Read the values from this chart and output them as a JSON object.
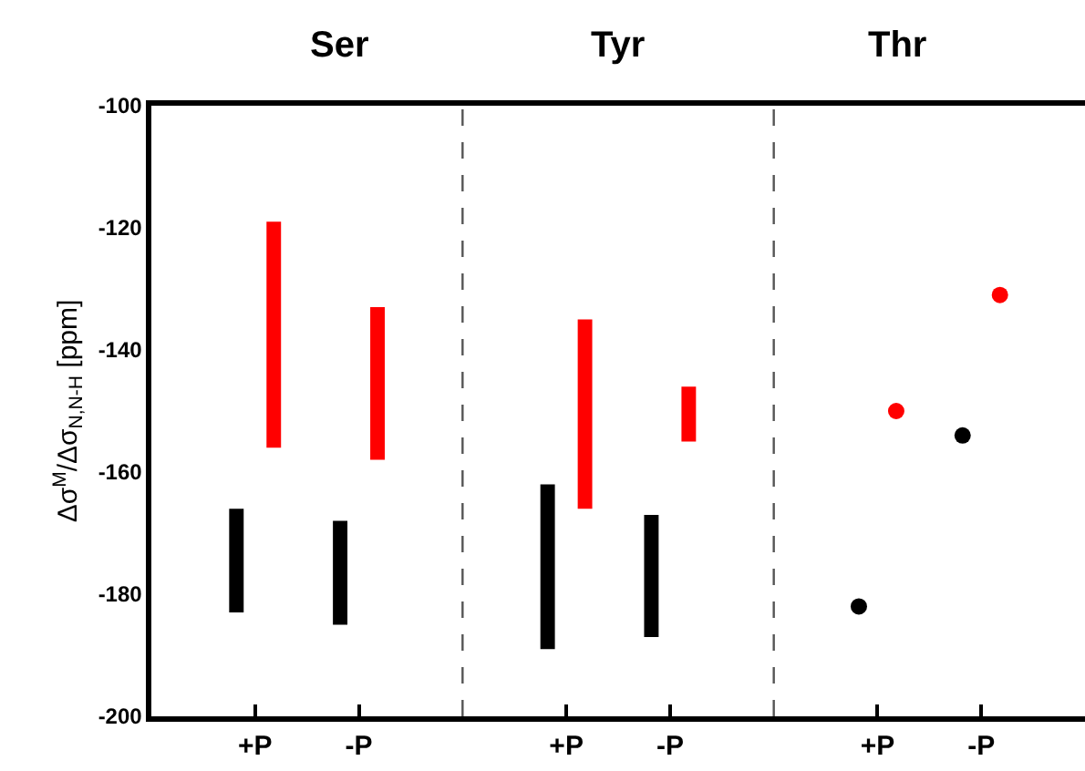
{
  "chart_data": [
    {
      "type": "bar",
      "title": "Ser",
      "ylabel": "Δσ$^{M}$/Δσ$_{N,N-H}$ [ppm]",
      "categories": [
        "+P",
        "-P"
      ],
      "series": [
        {
          "color": "#000000",
          "base": [
            -183,
            -185
          ],
          "values": [
            17,
            17
          ]
        },
        {
          "color": "#ff0000",
          "base": [
            -156,
            -158
          ],
          "values": [
            37,
            25
          ]
        }
      ],
      "ylim": [
        -200,
        -100
      ],
      "yticks": [
        -200,
        -180,
        -160,
        -140,
        -120,
        -100
      ]
    },
    {
      "type": "bar",
      "title": "Tyr",
      "categories": [
        "+P",
        "-P"
      ],
      "series": [
        {
          "color": "#000000",
          "base": [
            -189,
            -187
          ],
          "values": [
            27,
            20
          ]
        },
        {
          "color": "#ff0000",
          "base": [
            -166,
            -155
          ],
          "values": [
            31,
            9
          ]
        }
      ],
      "ylim": [
        -200,
        -100
      ],
      "yticks": [
        -200,
        -180,
        -160,
        -140,
        -120,
        -100
      ],
      "tick_labels": "x"
    },
    {
      "type": "scatter",
      "title": "Thr",
      "categories": [
        "+P",
        "-P"
      ],
      "marker": "circle",
      "series": [
        {
          "color": "#000000",
          "values": [
            -182,
            -154
          ]
        },
        {
          "color": "#ff0000",
          "values": [
            -150,
            -131
          ]
        }
      ],
      "ylim": [
        -200,
        -100
      ],
      "yticks": [
        -200,
        -180,
        -160,
        -140,
        -120,
        -100
      ],
      "tick_labels": "x"
    }
  ]
}
